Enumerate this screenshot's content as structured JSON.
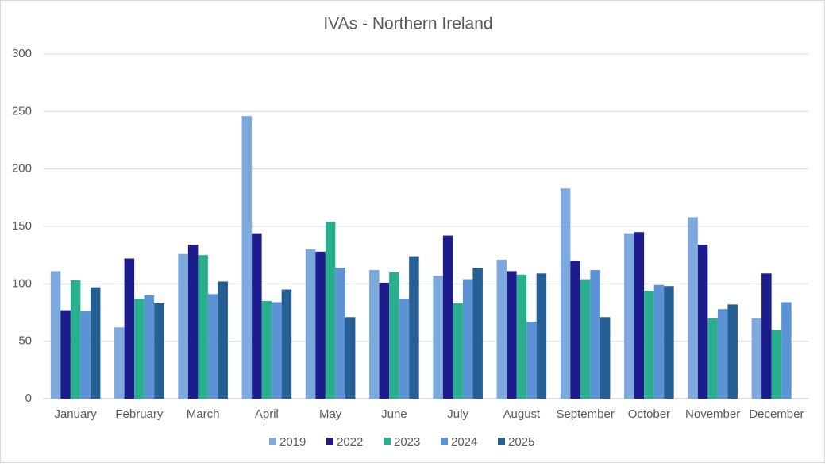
{
  "chart_data": {
    "type": "bar",
    "title": "IVAs - Northern Ireland",
    "categories": [
      "January",
      "February",
      "March",
      "April",
      "May",
      "June",
      "July",
      "August",
      "September",
      "October",
      "November",
      "December"
    ],
    "series": [
      {
        "name": "2019",
        "color": "#7ea9dc",
        "values": [
          111,
          62,
          126,
          246,
          130,
          112,
          107,
          121,
          183,
          144,
          158,
          70
        ]
      },
      {
        "name": "2022",
        "color": "#1c1c8c",
        "values": [
          77,
          122,
          134,
          144,
          128,
          101,
          142,
          111,
          120,
          145,
          134,
          109
        ]
      },
      {
        "name": "2023",
        "color": "#2bae8e",
        "values": [
          103,
          87,
          125,
          85,
          154,
          110,
          83,
          108,
          104,
          94,
          70,
          60
        ]
      },
      {
        "name": "2024",
        "color": "#5b93d6",
        "values": [
          76,
          90,
          91,
          84,
          114,
          87,
          104,
          67,
          112,
          99,
          78,
          84
        ]
      },
      {
        "name": "2025",
        "color": "#255f93",
        "values": [
          97,
          83,
          102,
          95,
          71,
          124,
          114,
          109,
          71,
          98,
          82,
          null
        ]
      }
    ],
    "ylim": [
      0,
      300
    ],
    "yticks": [
      0,
      50,
      100,
      150,
      200,
      250,
      300
    ],
    "grid": true,
    "legend": "bottom"
  }
}
